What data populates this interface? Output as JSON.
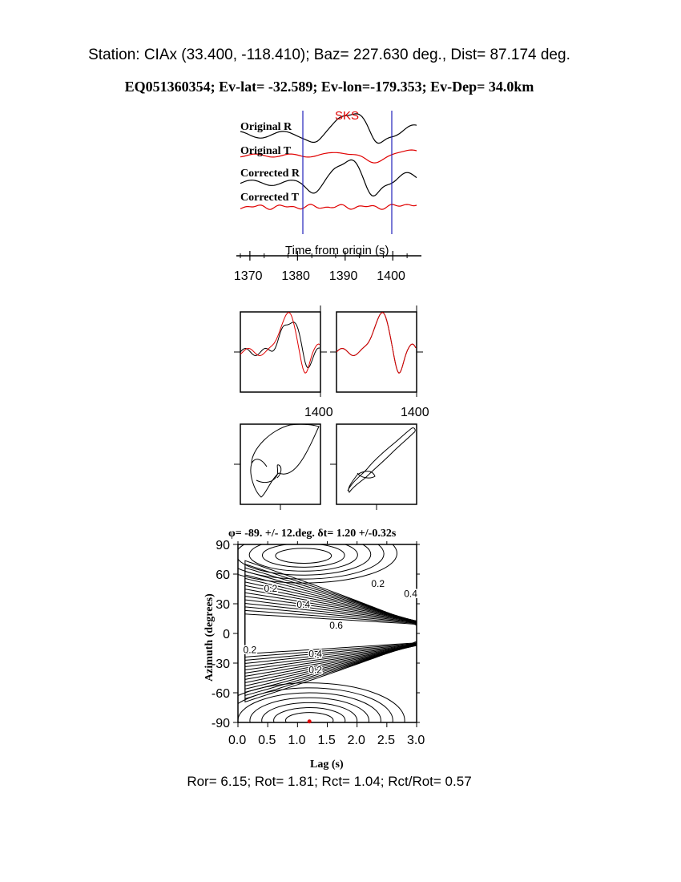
{
  "header": {
    "station_line": "Station: CIAx (33.400, -118.410); Baz=  227.630 deg., Dist=   87.174 deg.",
    "event_line": "EQ051360354; Ev-lat= -32.589; Ev-lon=-179.353; Ev-Dep= 34.0km"
  },
  "footer": {
    "summary_line": "Ror= 6.15; Rot= 1.81; Rct= 1.04; Rct/Rot= 0.57"
  },
  "colors": {
    "radial": "#000000",
    "transverse": "#e00000",
    "window": "#2222bb",
    "best_fit": "#e00000"
  },
  "chart_data": [
    {
      "type": "line",
      "panel": "seismograms",
      "phase_label": "SKS",
      "series": [
        {
          "name": "Original R",
          "color": "#000000"
        },
        {
          "name": "Original T",
          "color": "#e00000"
        },
        {
          "name": "Corrected R",
          "color": "#000000"
        },
        {
          "name": "Corrected T",
          "color": "#e00000"
        }
      ],
      "xlabel": "Time from origin (s)",
      "xlim": [
        1368,
        1405
      ],
      "xticks": [
        "1370",
        "1380",
        "1390",
        "1400"
      ],
      "window": [
        1382,
        1400
      ]
    },
    {
      "type": "line",
      "panel": "waveform-overlay",
      "tick_label": "1400",
      "subplots": [
        "original",
        "corrected"
      ],
      "series_colors": [
        "#000000",
        "#e00000"
      ]
    },
    {
      "type": "line",
      "panel": "particle-motion",
      "subplots": [
        "original",
        "corrected"
      ]
    },
    {
      "type": "heatmap",
      "panel": "energy-grid",
      "title": "φ= -89. +/- 12.deg. δt= 1.20 +/-0.32s",
      "xlabel": "Lag (s)",
      "ylabel": "Azimuth (degrees)",
      "xlim": [
        0,
        3
      ],
      "ylim": [
        -90,
        90
      ],
      "xticks": [
        "0.0",
        "0.5",
        "1.0",
        "1.5",
        "2.0",
        "2.5",
        "3.0"
      ],
      "yticks": [
        "90",
        "60",
        "30",
        "0",
        "-30",
        "-60",
        "-90"
      ],
      "contour_labels": [
        {
          "text": "0.2",
          "x": 0.55,
          "y": 42
        },
        {
          "text": "0.4",
          "x": 1.1,
          "y": 26
        },
        {
          "text": "0.6",
          "x": 1.65,
          "y": 5
        },
        {
          "text": "0.2",
          "x": 2.35,
          "y": 47
        },
        {
          "text": "0.4",
          "x": 2.9,
          "y": 37
        },
        {
          "text": "0.2",
          "x": 0.2,
          "y": -20
        },
        {
          "text": "0.4",
          "x": 1.3,
          "y": -24
        },
        {
          "text": "0.2",
          "x": 1.3,
          "y": -40
        }
      ],
      "best_fit": {
        "lag": 1.2,
        "azimuth": -89
      }
    }
  ]
}
